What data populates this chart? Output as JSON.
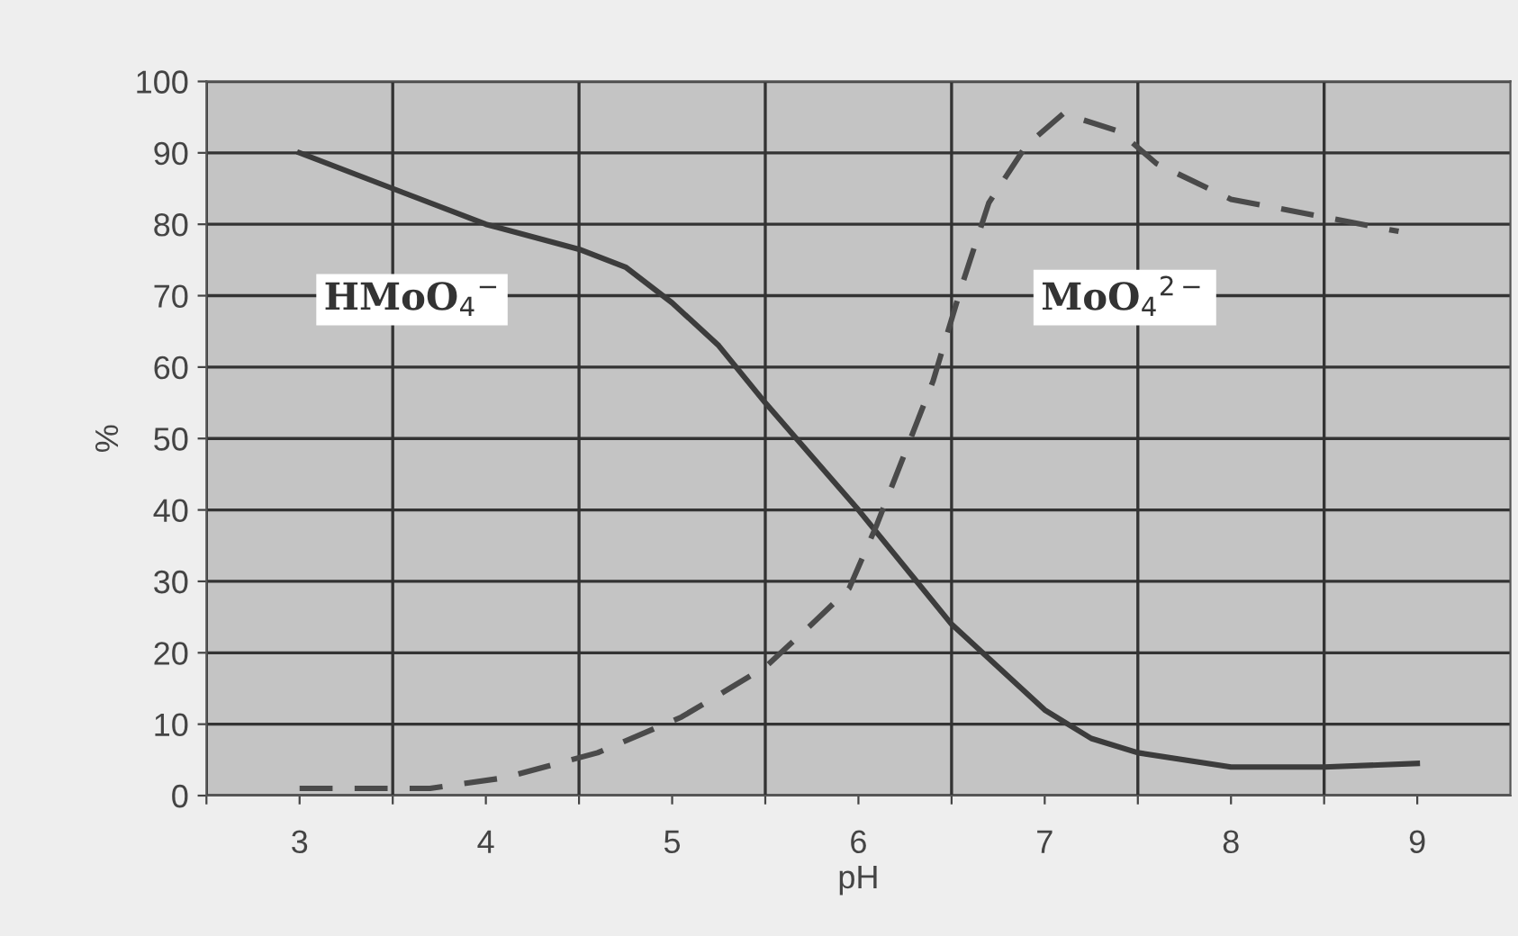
{
  "chart_data": {
    "type": "line",
    "xlabel": "pH",
    "ylabel": "%",
    "xlim": [
      2.5,
      9.5
    ],
    "ylim": [
      0,
      100
    ],
    "xticks": [
      {
        "value": 2.5,
        "label": null
      },
      3,
      {
        "value": 3.5,
        "label": null
      },
      4,
      {
        "value": 4.5,
        "label": null
      },
      5,
      {
        "value": 5.5,
        "label": null
      },
      6,
      {
        "value": 6.5,
        "label": null
      },
      7,
      {
        "value": 7.5,
        "label": null
      },
      8,
      {
        "value": 8.5,
        "label": null
      },
      9
    ],
    "yticks": [
      0,
      10,
      20,
      30,
      40,
      50,
      60,
      70,
      80,
      90,
      100
    ],
    "grid": true,
    "legend": false,
    "marker": "none",
    "series": [
      {
        "name": "HMoO$_{4}$$^{−}$",
        "color": "#3c3c3c",
        "line_style": "solid",
        "x": [
          3,
          3.5,
          4,
          4.5,
          4.75,
          5,
          5.25,
          5.5,
          6,
          6.5,
          7,
          7.25,
          7.5,
          8,
          8.5,
          9
        ],
        "values": [
          90,
          85,
          80,
          76.5,
          74,
          69,
          63,
          55,
          40,
          24,
          12,
          8,
          6,
          4,
          4,
          4.5
        ]
      },
      {
        "name": "MoO$_{4}$$^{2−}$",
        "color": "#4a4a4a",
        "line_style": "dashed",
        "x": [
          3,
          3.7,
          4.1,
          4.6,
          5.05,
          5.5,
          5.75,
          5.95,
          6.1,
          6.25,
          6.4,
          6.55,
          6.7,
          6.9,
          7.1,
          7.4,
          7.6,
          8,
          8.5,
          8.9
        ],
        "values": [
          1,
          1,
          2.5,
          6,
          11,
          18,
          24,
          29,
          38,
          48,
          58,
          71,
          83,
          91,
          95.5,
          93,
          88.5,
          83.5,
          81,
          79
        ]
      }
    ]
  }
}
